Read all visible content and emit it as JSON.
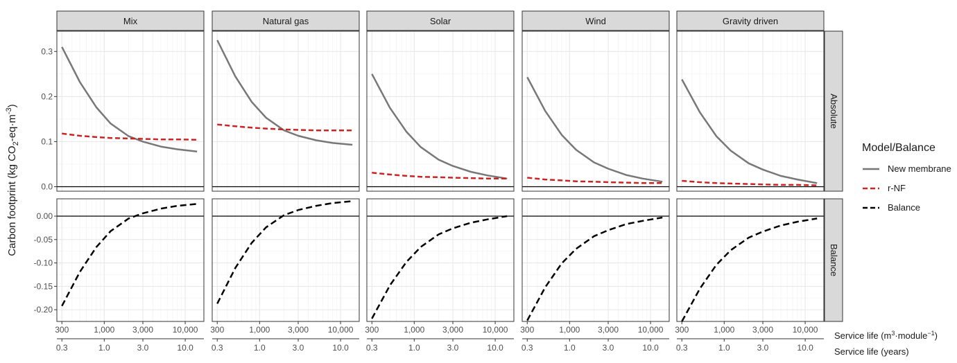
{
  "colors": {
    "new_membrane": "#777777",
    "r_nf": "#cc2222",
    "balance": "#000000"
  },
  "chart_data": {
    "type": "line",
    "facet_columns": [
      "Mix",
      "Natural gas",
      "Solar",
      "Wind",
      "Gravity driven"
    ],
    "facet_rows": [
      "Absolute",
      "Balance"
    ],
    "ylabel_main": "Carbon footprint (kg CO",
    "ylabel_sub": "2",
    "ylabel_mid": "-eq·m",
    "ylabel_sup": "-3",
    "ylabel_end": ")",
    "xlabel_primary": "Service life (m",
    "xlabel_primary_sup": "3",
    "xlabel_primary_mid": "·module",
    "xlabel_primary_sup2": "−1",
    "xlabel_primary_end": ")",
    "xlabel_secondary": "Service life (years)",
    "x_scale": "log",
    "xlim": [
      260,
      17000
    ],
    "x_ticks": [
      300,
      1000,
      3000,
      10000
    ],
    "x_tick_labels": [
      "300",
      "1,000",
      "3,000",
      "10,000"
    ],
    "x2_ticks": [
      0.3,
      1.0,
      3.0,
      10.0
    ],
    "x2_tick_labels": [
      "0.3",
      "1.0",
      "3.0",
      "10.0"
    ],
    "x2_ratio_m3_per_year": 1000,
    "absolute_ylim": [
      -0.01,
      0.345
    ],
    "absolute_y_ticks": [
      0.0,
      0.1,
      0.2,
      0.3
    ],
    "absolute_y_tick_labels": [
      "0.0",
      "0.1",
      "0.2",
      "0.3"
    ],
    "balance_ylim": [
      -0.225,
      0.037
    ],
    "balance_y_ticks": [
      -0.2,
      -0.15,
      -0.1,
      -0.05,
      0.0
    ],
    "balance_y_tick_labels": [
      "-0.20",
      "-0.15",
      "-0.10",
      "-0.05",
      "0.00"
    ],
    "grid": true,
    "legend_title": "Model/Balance",
    "legend_position": "right",
    "legend": [
      {
        "label": "New membrane",
        "style": "solid",
        "color_key": "new_membrane"
      },
      {
        "label": "r-NF",
        "style": "dashed",
        "color_key": "r_nf"
      },
      {
        "label": "Balance",
        "style": "dashed",
        "color_key": "balance"
      }
    ],
    "panels": [
      {
        "facet": "Mix",
        "x": [
          300,
          500,
          800,
          1200,
          2000,
          3000,
          5000,
          8000,
          14000
        ],
        "new_membrane": [
          0.31,
          0.232,
          0.176,
          0.14,
          0.112,
          0.1,
          0.089,
          0.083,
          0.078
        ],
        "r_nf": [
          0.118,
          0.113,
          0.11,
          0.108,
          0.107,
          0.106,
          0.105,
          0.105,
          0.104
        ],
        "balance": [
          -0.192,
          -0.119,
          -0.066,
          -0.032,
          -0.005,
          0.006,
          0.016,
          0.022,
          0.026
        ]
      },
      {
        "facet": "Natural gas",
        "x": [
          300,
          500,
          800,
          1200,
          2000,
          3000,
          5000,
          8000,
          14000
        ],
        "new_membrane": [
          0.325,
          0.245,
          0.188,
          0.153,
          0.125,
          0.113,
          0.103,
          0.097,
          0.093
        ],
        "r_nf": [
          0.138,
          0.134,
          0.131,
          0.129,
          0.127,
          0.126,
          0.125,
          0.125,
          0.125
        ],
        "balance": [
          -0.187,
          -0.111,
          -0.057,
          -0.024,
          0.002,
          0.013,
          0.022,
          0.028,
          0.032
        ]
      },
      {
        "facet": "Solar",
        "x": [
          300,
          500,
          800,
          1200,
          2000,
          3000,
          5000,
          8000,
          14000
        ],
        "new_membrane": [
          0.25,
          0.175,
          0.122,
          0.088,
          0.06,
          0.046,
          0.033,
          0.025,
          0.018
        ],
        "r_nf": [
          0.031,
          0.027,
          0.024,
          0.022,
          0.021,
          0.02,
          0.019,
          0.018,
          0.018
        ],
        "balance": [
          -0.219,
          -0.148,
          -0.098,
          -0.066,
          -0.039,
          -0.026,
          -0.014,
          -0.007,
          0.0
        ]
      },
      {
        "facet": "Wind",
        "x": [
          300,
          500,
          800,
          1200,
          2000,
          3000,
          5000,
          8000,
          14000
        ],
        "new_membrane": [
          0.243,
          0.168,
          0.115,
          0.082,
          0.054,
          0.04,
          0.026,
          0.018,
          0.011
        ],
        "r_nf": [
          0.02,
          0.016,
          0.014,
          0.012,
          0.011,
          0.01,
          0.009,
          0.008,
          0.008
        ],
        "balance": [
          -0.223,
          -0.152,
          -0.101,
          -0.07,
          -0.043,
          -0.03,
          -0.017,
          -0.01,
          -0.003
        ]
      },
      {
        "facet": "Gravity driven",
        "x": [
          300,
          500,
          800,
          1200,
          2000,
          3000,
          5000,
          8000,
          14000
        ],
        "new_membrane": [
          0.238,
          0.165,
          0.112,
          0.08,
          0.052,
          0.038,
          0.024,
          0.016,
          0.008
        ],
        "r_nf": [
          0.013,
          0.01,
          0.008,
          0.007,
          0.006,
          0.005,
          0.004,
          0.004,
          0.003
        ],
        "balance": [
          -0.225,
          -0.155,
          -0.104,
          -0.073,
          -0.046,
          -0.033,
          -0.02,
          -0.012,
          -0.005
        ]
      }
    ]
  }
}
